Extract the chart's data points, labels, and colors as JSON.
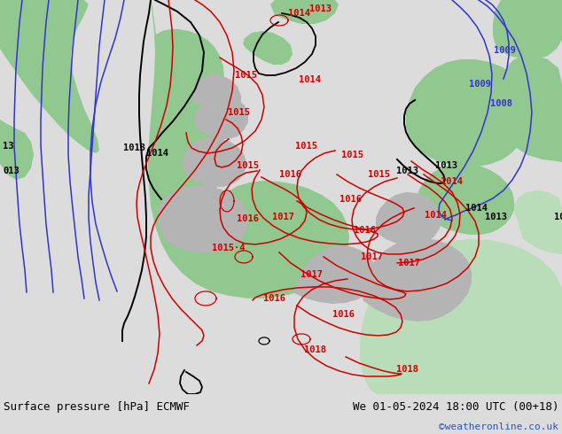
{
  "title_left": "Surface pressure [hPa] ECMWF",
  "title_right": "We 01-05-2024 18:00 UTC (00+18)",
  "credit": "©weatheronline.co.uk",
  "bg_color": "#dcdcdc",
  "sea_color": "#dcdcdc",
  "green_fill": "#90c890",
  "light_green": "#b8ddb8",
  "blue_line_color": "#3333cc",
  "black_line_color": "#000000",
  "red_line_color": "#cc0000",
  "gray_land": "#b8b8b8",
  "figsize": [
    6.34,
    4.9
  ],
  "dpi": 100,
  "footer_bg": "#c8c8c8"
}
